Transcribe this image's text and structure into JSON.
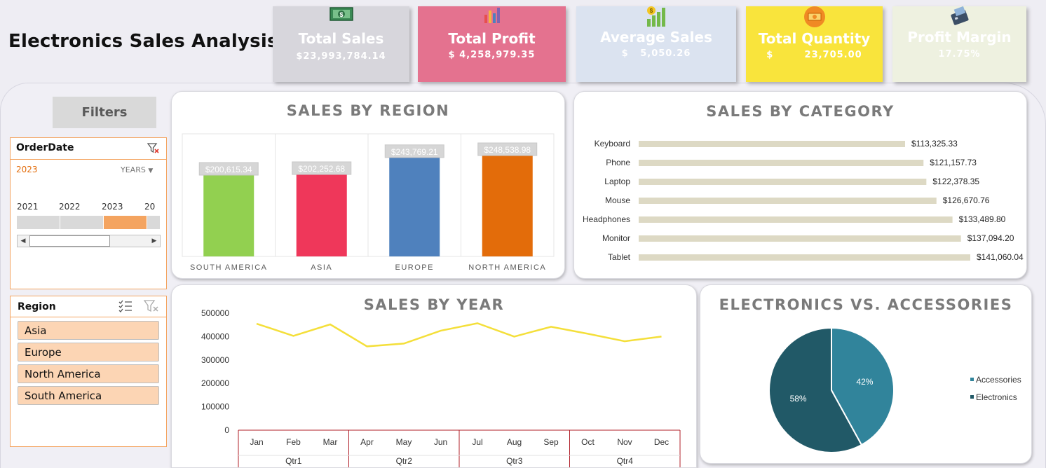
{
  "title": "Electronics Sales Analysis",
  "kpis": [
    {
      "label": "Total Sales",
      "value": "$23,993,784.14",
      "bg": "#d7d6dc",
      "icon": "money-icon"
    },
    {
      "label": "Total Profit",
      "value": "$ 4,258,979.35",
      "bg": "#e4728f",
      "icon": "bar-chart-icon"
    },
    {
      "label": "Average Sales",
      "value": "$   5,050.26",
      "bg": "#dbe3f0",
      "icon": "growth-chart-icon"
    },
    {
      "label": "Total Quantity",
      "value": "$        23,705.00",
      "bg": "#f9e43c",
      "icon": "cash-icon"
    },
    {
      "label": "Profit Margin",
      "value": "17.75%",
      "bg": "#eef1e0",
      "icon": "card-reader-icon"
    }
  ],
  "filters": {
    "button_label": "Filters",
    "order_date": {
      "header": "OrderDate",
      "selected": "2023",
      "level": "YEARS",
      "years": [
        "2021",
        "2022",
        "2023",
        "20"
      ],
      "selected_index": 2
    },
    "region": {
      "header": "Region",
      "items": [
        "Asia",
        "Europe",
        "North America",
        "South America"
      ]
    }
  },
  "colors": {
    "accent_orange": "#f4a460",
    "line_yellow": "#f4df3a",
    "bar_beige": "#ddd9c4",
    "pie_accessories": "#31849b",
    "pie_electronics": "#215967"
  },
  "chart_data": [
    {
      "type": "bar",
      "title": "SALES BY REGION",
      "categories": [
        "SOUTH AMERICA",
        "ASIA",
        "EUROPE",
        "NORTH AMERICA"
      ],
      "values": [
        200615.34,
        202252.68,
        243769.21,
        248538.98
      ],
      "labels": [
        "$200,615.34",
        "$202,252.68",
        "$243,769.21",
        "$248,538.98"
      ],
      "colors": [
        "#92d050",
        "#ef375a",
        "#4f81bd",
        "#e36c0a"
      ],
      "ylim": [
        0,
        300000
      ]
    },
    {
      "type": "bar",
      "orientation": "horizontal",
      "title": "SALES BY CATEGORY",
      "categories": [
        "Keyboard",
        "Phone",
        "Laptop",
        "Mouse",
        "Headphones",
        "Monitor",
        "Tablet"
      ],
      "values": [
        113325.33,
        121157.73,
        122378.35,
        126670.76,
        133489.8,
        137094.2,
        141060.04
      ],
      "labels": [
        "$113,325.33",
        "$121,157.73",
        "$122,378.35",
        "$126,670.76",
        "$133,489.80",
        "$137,094.20",
        "$141,060.04"
      ]
    },
    {
      "type": "line",
      "title": "SALES BY YEAR",
      "x": [
        "Jan",
        "Feb",
        "Mar",
        "Apr",
        "May",
        "Jun",
        "Jul",
        "Aug",
        "Sep",
        "Oct",
        "Nov",
        "Dec"
      ],
      "quarters": [
        "Qtr1",
        "Qtr2",
        "Qtr3",
        "Qtr4"
      ],
      "values": [
        455000,
        403000,
        452000,
        358000,
        370000,
        425000,
        457000,
        400000,
        442000,
        412000,
        380000,
        400000
      ],
      "yticks": [
        "500000",
        "400000",
        "300000",
        "200000",
        "100000",
        "0"
      ],
      "ylim": [
        0,
        500000
      ]
    },
    {
      "type": "pie",
      "title": "ELECTRONICS VS. ACCESSORIES",
      "slices": [
        {
          "name": "Accessories",
          "value": 42,
          "label": "42%"
        },
        {
          "name": "Electronics",
          "value": 58,
          "label": "58%"
        }
      ],
      "legend": "right"
    }
  ]
}
